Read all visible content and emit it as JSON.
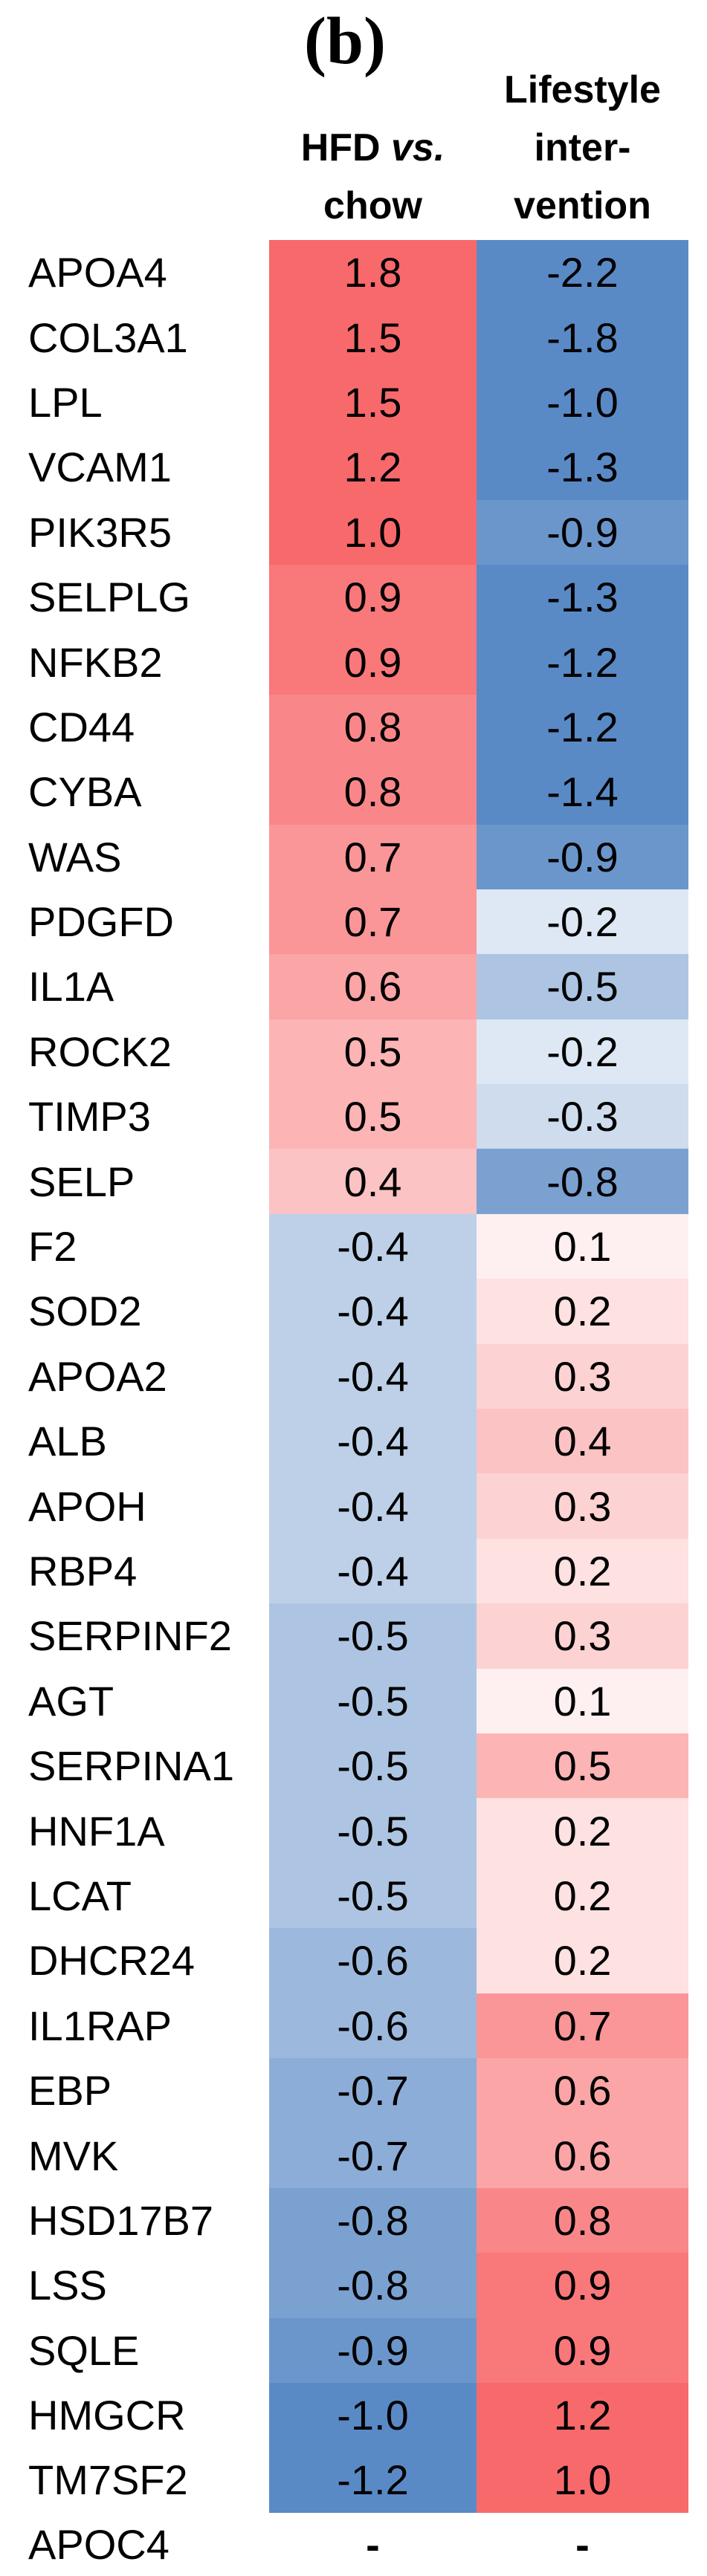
{
  "figure_label": "(b)",
  "header": {
    "col1": {
      "text_normal": "HFD",
      "text_italic": "vs.",
      "line2": "chow"
    },
    "col2": {
      "line1": "Lifestyle",
      "line2": "inter-",
      "line3": "vention"
    }
  },
  "colors": {
    "positive_full": "#F8696B",
    "negative_full": "#5A8AC6",
    "neutral": "#FFFFFF",
    "text": "#000000",
    "background": "#FFFFFF"
  },
  "missing_value_marker": "-",
  "chart_data": {
    "type": "heatmap",
    "title": "(b)",
    "columns": [
      "HFD vs. chow",
      "Lifestyle intervention"
    ],
    "genes": [
      "APOA4",
      "COL3A1",
      "LPL",
      "VCAM1",
      "PIK3R5",
      "SELPLG",
      "NFKB2",
      "CD44",
      "CYBA",
      "WAS",
      "PDGFD",
      "IL1A",
      "ROCK2",
      "TIMP3",
      "SELP",
      "F2",
      "SOD2",
      "APOA2",
      "ALB",
      "APOH",
      "RBP4",
      "SERPINF2",
      "AGT",
      "SERPINA1",
      "HNF1A",
      "LCAT",
      "DHCR24",
      "IL1RAP",
      "EBP",
      "MVK",
      "HSD17B7",
      "LSS",
      "SQLE",
      "HMGCR",
      "TM7SF2",
      "APOC4"
    ],
    "values": [
      [
        1.8,
        -2.2
      ],
      [
        1.5,
        -1.8
      ],
      [
        1.5,
        -1.0
      ],
      [
        1.2,
        -1.3
      ],
      [
        1.0,
        -0.9
      ],
      [
        0.9,
        -1.3
      ],
      [
        0.9,
        -1.2
      ],
      [
        0.8,
        -1.2
      ],
      [
        0.8,
        -1.4
      ],
      [
        0.7,
        -0.9
      ],
      [
        0.7,
        -0.2
      ],
      [
        0.6,
        -0.5
      ],
      [
        0.5,
        -0.2
      ],
      [
        0.5,
        -0.3
      ],
      [
        0.4,
        -0.8
      ],
      [
        -0.4,
        0.1
      ],
      [
        -0.4,
        0.2
      ],
      [
        -0.4,
        0.3
      ],
      [
        -0.4,
        0.4
      ],
      [
        -0.4,
        0.3
      ],
      [
        -0.4,
        0.2
      ],
      [
        -0.5,
        0.3
      ],
      [
        -0.5,
        0.1
      ],
      [
        -0.5,
        0.5
      ],
      [
        -0.5,
        0.2
      ],
      [
        -0.5,
        0.2
      ],
      [
        -0.6,
        0.2
      ],
      [
        -0.6,
        0.7
      ],
      [
        -0.7,
        0.6
      ],
      [
        -0.7,
        0.6
      ],
      [
        -0.8,
        0.8
      ],
      [
        -0.8,
        0.9
      ],
      [
        -0.9,
        0.9
      ],
      [
        -1.0,
        1.2
      ],
      [
        -1.2,
        1.0
      ],
      [
        "-",
        "-"
      ]
    ],
    "color_scale": {
      "min_color": "#5A8AC6",
      "mid_color": "#FFFFFF",
      "max_color": "#F8696B",
      "midpoint": 0,
      "saturation_abs": 1.0
    },
    "legend": "none",
    "grid": false
  }
}
